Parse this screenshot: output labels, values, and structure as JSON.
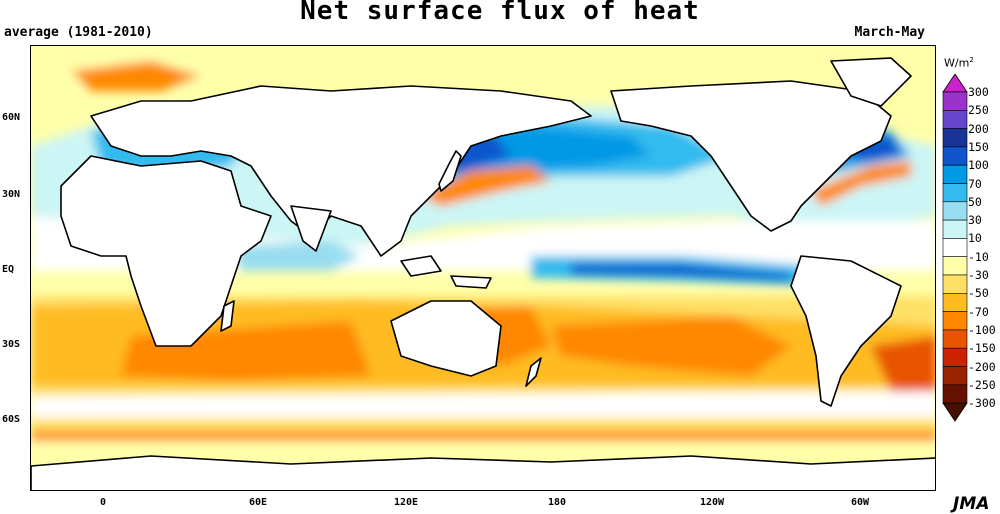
{
  "title": "Net surface flux of heat",
  "subtitle_left": "average (1981-2010)",
  "subtitle_right": "March-May",
  "units": {
    "label": "W/m",
    "sup": "2"
  },
  "credit": "JMA",
  "lat_labels": [
    "60N",
    "30N",
    "EQ",
    "30S",
    "60S"
  ],
  "lon_labels": [
    "0",
    "60E",
    "120E",
    "180",
    "120W",
    "60W"
  ],
  "legend": {
    "labels": [
      "300",
      "250",
      "200",
      "150",
      "100",
      "70",
      "50",
      "30",
      "10",
      "-10",
      "-30",
      "-50",
      "-70",
      "-100",
      "-150",
      "-200",
      "-250",
      "-300"
    ],
    "colors": [
      "#cc22cc",
      "#9933cc",
      "#6644cc",
      "#1a3399",
      "#1155cc",
      "#0099e6",
      "#33bbee",
      "#99ddf0",
      "#ccf5f5",
      "#ffffff",
      "#ffffaa",
      "#ffe066",
      "#ffbb22",
      "#ff8800",
      "#e85500",
      "#cc2200",
      "#992200",
      "#661100",
      "#441100"
    ]
  }
}
